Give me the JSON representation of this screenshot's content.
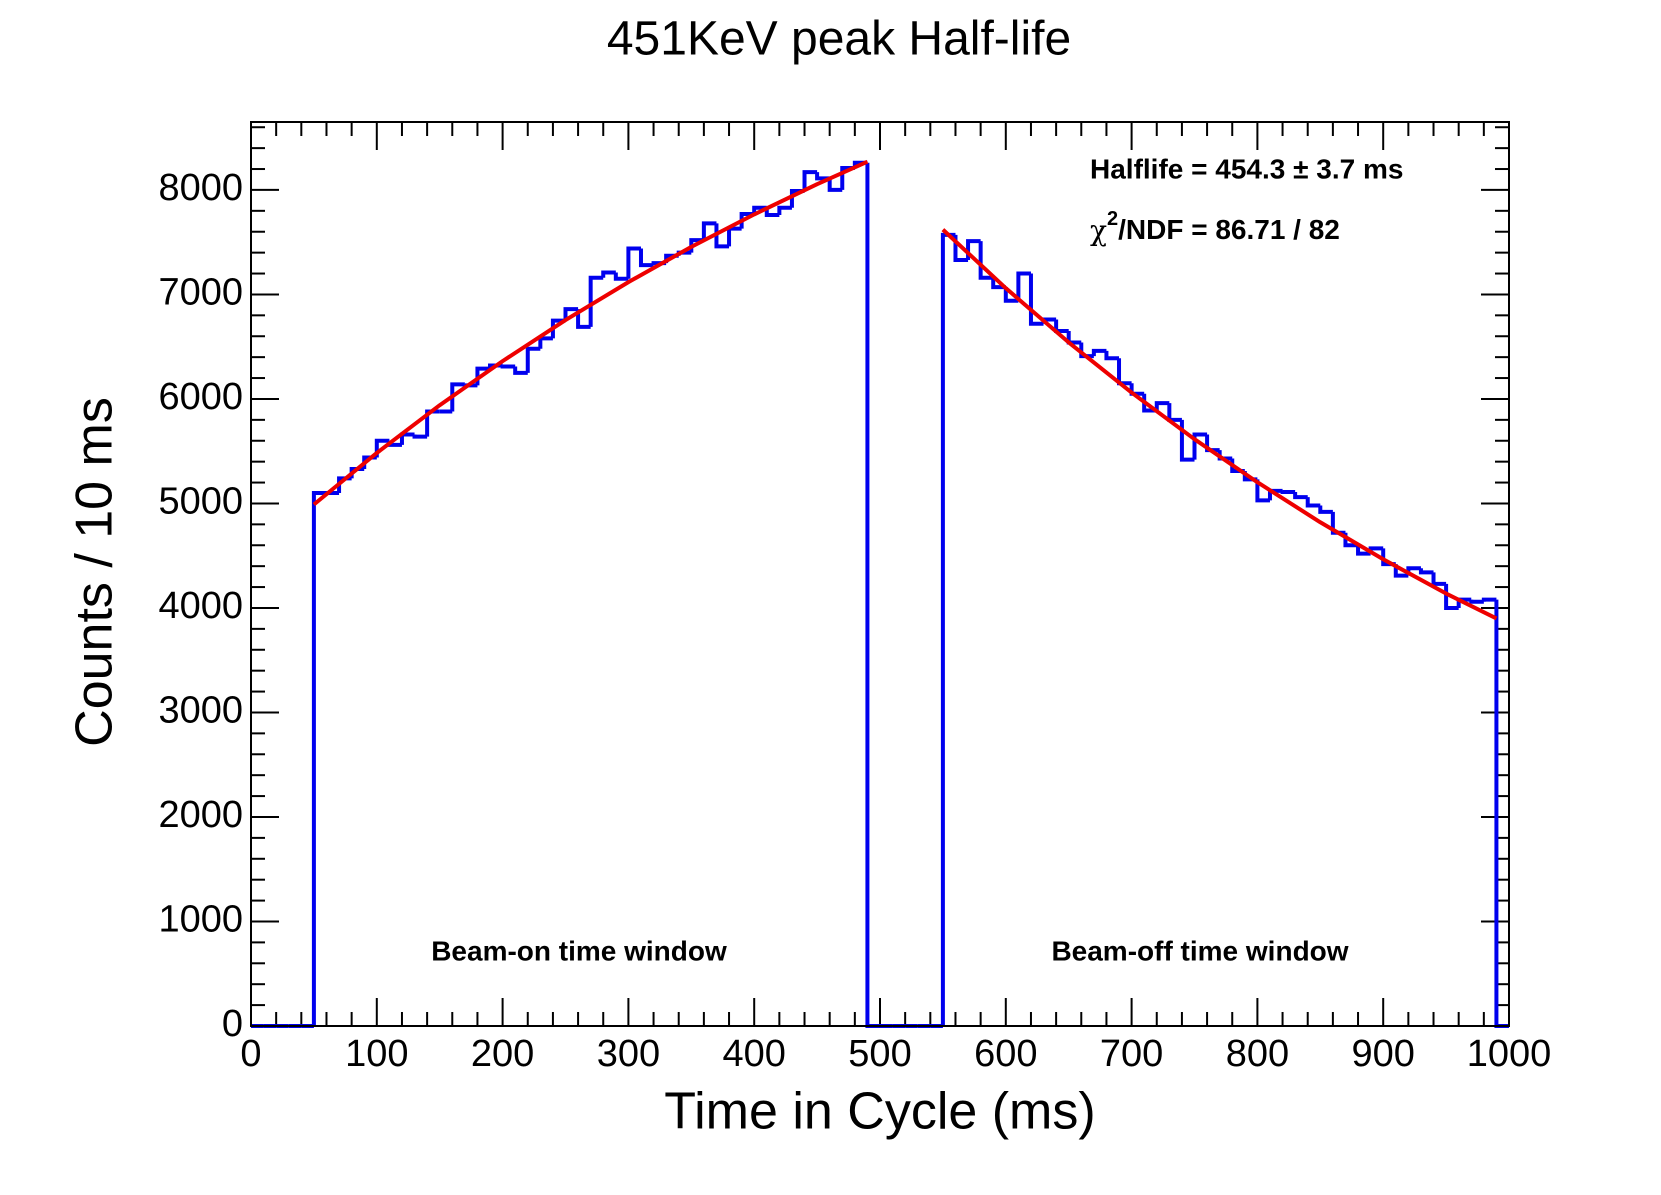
{
  "chart_data": {
    "type": "histogram",
    "title": "451KeV peak Half-life",
    "x_label": "Time in Cycle (ms)",
    "y_label": "Counts / 10 ms",
    "color": "#0000ee",
    "bins": [
      0,
      10,
      20,
      30,
      40,
      50,
      60,
      70,
      80,
      90,
      100,
      110,
      120,
      130,
      140,
      150,
      160,
      170,
      180,
      190,
      200,
      210,
      220,
      230,
      240,
      250,
      260,
      270,
      280,
      290,
      300,
      310,
      320,
      330,
      340,
      350,
      360,
      370,
      380,
      390,
      400,
      410,
      420,
      430,
      440,
      450,
      460,
      470,
      480,
      490,
      500,
      510,
      520,
      530,
      540,
      550,
      560,
      570,
      580,
      590,
      600,
      610,
      620,
      630,
      640,
      650,
      660,
      670,
      680,
      690,
      700,
      710,
      720,
      730,
      740,
      750,
      760,
      770,
      780,
      790,
      800,
      810,
      820,
      830,
      840,
      850,
      860,
      870,
      880,
      890,
      900,
      910,
      920,
      930,
      940,
      950,
      960,
      970,
      980,
      990,
      1000
    ],
    "counts": [
      0,
      0,
      0,
      0,
      0,
      5100,
      5100,
      5240,
      5330,
      5440,
      5600,
      5560,
      5660,
      5640,
      5880,
      5880,
      6140,
      6130,
      6290,
      6320,
      6310,
      6250,
      6480,
      6580,
      6750,
      6860,
      6690,
      7160,
      7210,
      7150,
      7440,
      7280,
      7300,
      7370,
      7400,
      7520,
      7680,
      7460,
      7630,
      7770,
      7830,
      7760,
      7830,
      7990,
      8170,
      8110,
      8000,
      8210,
      8260,
      0,
      0,
      0,
      0,
      0,
      0,
      7570,
      7330,
      7510,
      7160,
      7070,
      6940,
      7200,
      6720,
      6760,
      6650,
      6540,
      6410,
      6460,
      6390,
      6150,
      6050,
      5890,
      5960,
      5800,
      5420,
      5660,
      5510,
      5430,
      5310,
      5230,
      5030,
      5120,
      5110,
      5060,
      4980,
      4920,
      4720,
      4600,
      4520,
      4570,
      4420,
      4310,
      4380,
      4340,
      4230,
      4000,
      4080,
      4060,
      4080,
      0
    ],
    "fit": {
      "color": "#ee0000",
      "pieces": [
        {
          "x": [
            50,
            100,
            150,
            200,
            250,
            300,
            350,
            400,
            450,
            490
          ],
          "values": [
            4990,
            5483,
            5940,
            6362,
            6755,
            7118,
            7455,
            7766,
            8055,
            8270
          ]
        },
        {
          "x": [
            550,
            600,
            650,
            700,
            750,
            800,
            850,
            900,
            950,
            990
          ],
          "values": [
            7620,
            7060,
            6541,
            6061,
            5615,
            5203,
            4820,
            4466,
            4138,
            3900
          ]
        }
      ]
    },
    "xlim": [
      0,
      1000
    ],
    "xticks": [
      0,
      100,
      200,
      300,
      400,
      500,
      600,
      700,
      800,
      900,
      1000
    ],
    "ylim": [
      0,
      8650
    ],
    "yticks": [
      0,
      1000,
      2000,
      3000,
      4000,
      5000,
      6000,
      7000,
      8000
    ],
    "annotations": [
      {
        "text": "Halflife = 454.3 ± 3.7 ms"
      },
      {
        "text": "χ",
        "sup": "2",
        "rest": "/NDF = 86.71 / 82"
      },
      {
        "text": "Beam-on time window"
      },
      {
        "text": "Beam-off time window"
      }
    ]
  }
}
